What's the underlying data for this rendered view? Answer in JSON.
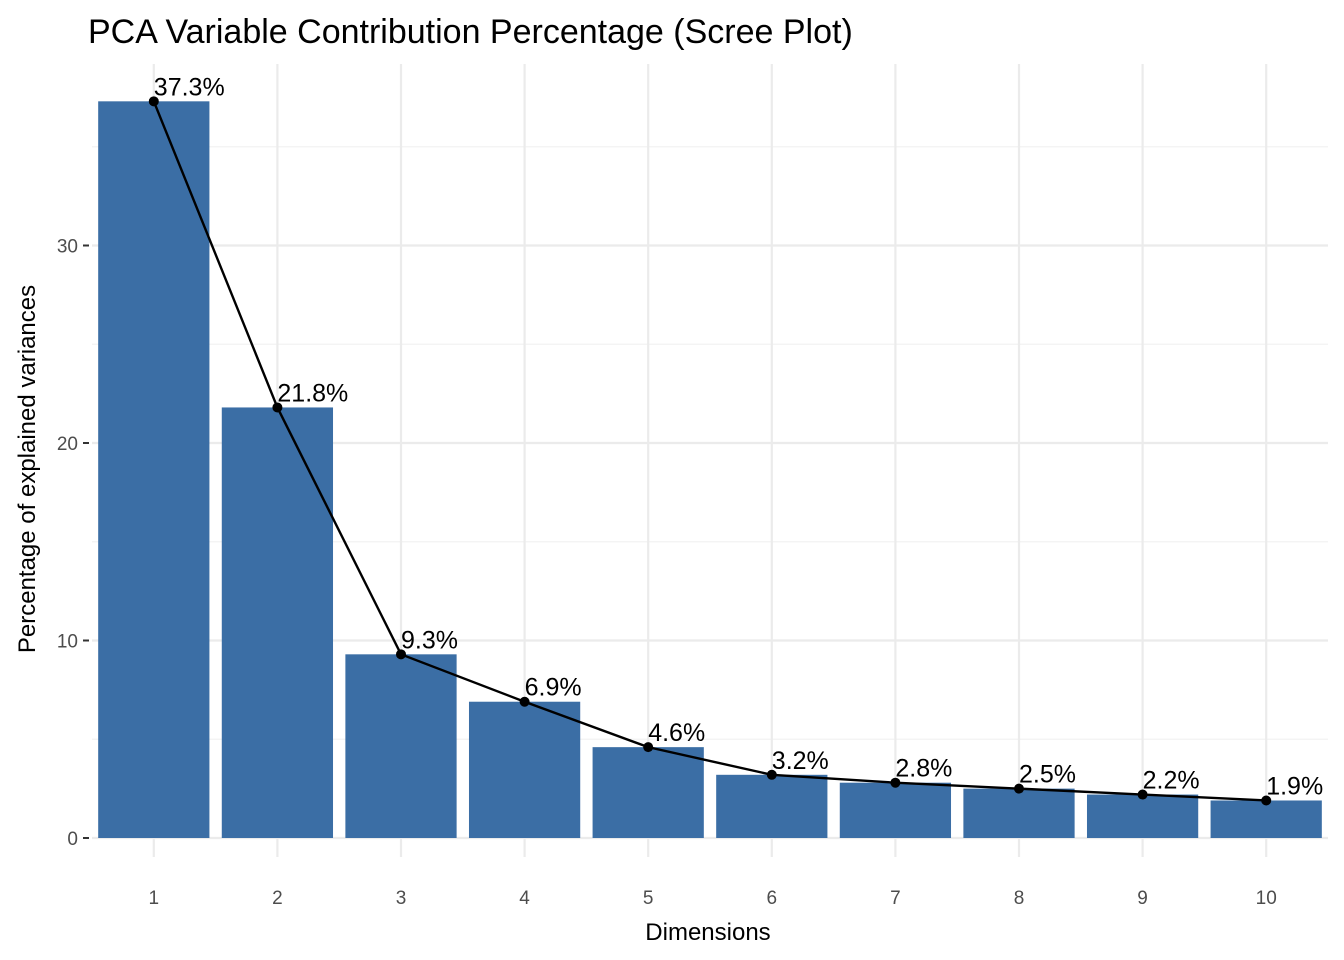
{
  "chart_data": {
    "type": "bar",
    "title": "PCA Variable Contribution Percentage (Scree Plot)",
    "xlabel": "Dimensions",
    "ylabel": "Percentage of explained variances",
    "categories": [
      "1",
      "2",
      "3",
      "4",
      "5",
      "6",
      "7",
      "8",
      "9",
      "10"
    ],
    "values": [
      37.3,
      21.8,
      9.3,
      6.9,
      4.6,
      3.2,
      2.8,
      2.5,
      2.2,
      1.9
    ],
    "data_labels": [
      "37.3%",
      "21.8%",
      "9.3%",
      "6.9%",
      "4.6%",
      "3.2%",
      "2.8%",
      "2.5%",
      "2.2%",
      "1.9%"
    ],
    "yticks": [
      0,
      10,
      20,
      30
    ],
    "ylim": [
      0,
      39.2
    ],
    "grid": true,
    "overlay_line": true,
    "colors": {
      "bar": "#3B6EA5",
      "line": "#000000",
      "grid": "#EBEBEB"
    }
  }
}
